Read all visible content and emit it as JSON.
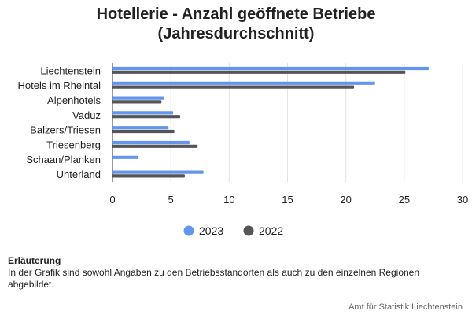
{
  "chart_data": {
    "type": "bar",
    "orientation": "horizontal",
    "title": [
      "Hotellerie - Anzahl geöffnete Betriebe",
      "(Jahresdurchschnitt)"
    ],
    "categories": [
      "Liechtenstein",
      "Hotels im Rheintal",
      "Alpenhotels",
      "Vaduz",
      "Balzers/Triesen",
      "Triesenberg",
      "Schaan/Planken",
      "Unterland"
    ],
    "series": [
      {
        "name": "2023",
        "color": "#6495ED",
        "values": [
          27.1,
          22.5,
          4.4,
          5.2,
          4.8,
          6.6,
          2.2,
          7.8
        ]
      },
      {
        "name": "2022",
        "color": "#555555",
        "values": [
          25.1,
          20.7,
          4.2,
          5.8,
          5.3,
          7.3,
          0,
          6.2
        ]
      }
    ],
    "xlim": [
      0,
      30
    ],
    "xticks": [
      0,
      5,
      10,
      15,
      20,
      25,
      30
    ],
    "grid": true,
    "legend_position": "bottom"
  },
  "note": {
    "heading": "Erläuterung",
    "text": "In der Grafik sind sowohl Angaben zu den Betriebsstandorten als auch zu den einzelnen Regionen abgebildet."
  },
  "source": "Amt für Statistik Liechtenstein"
}
